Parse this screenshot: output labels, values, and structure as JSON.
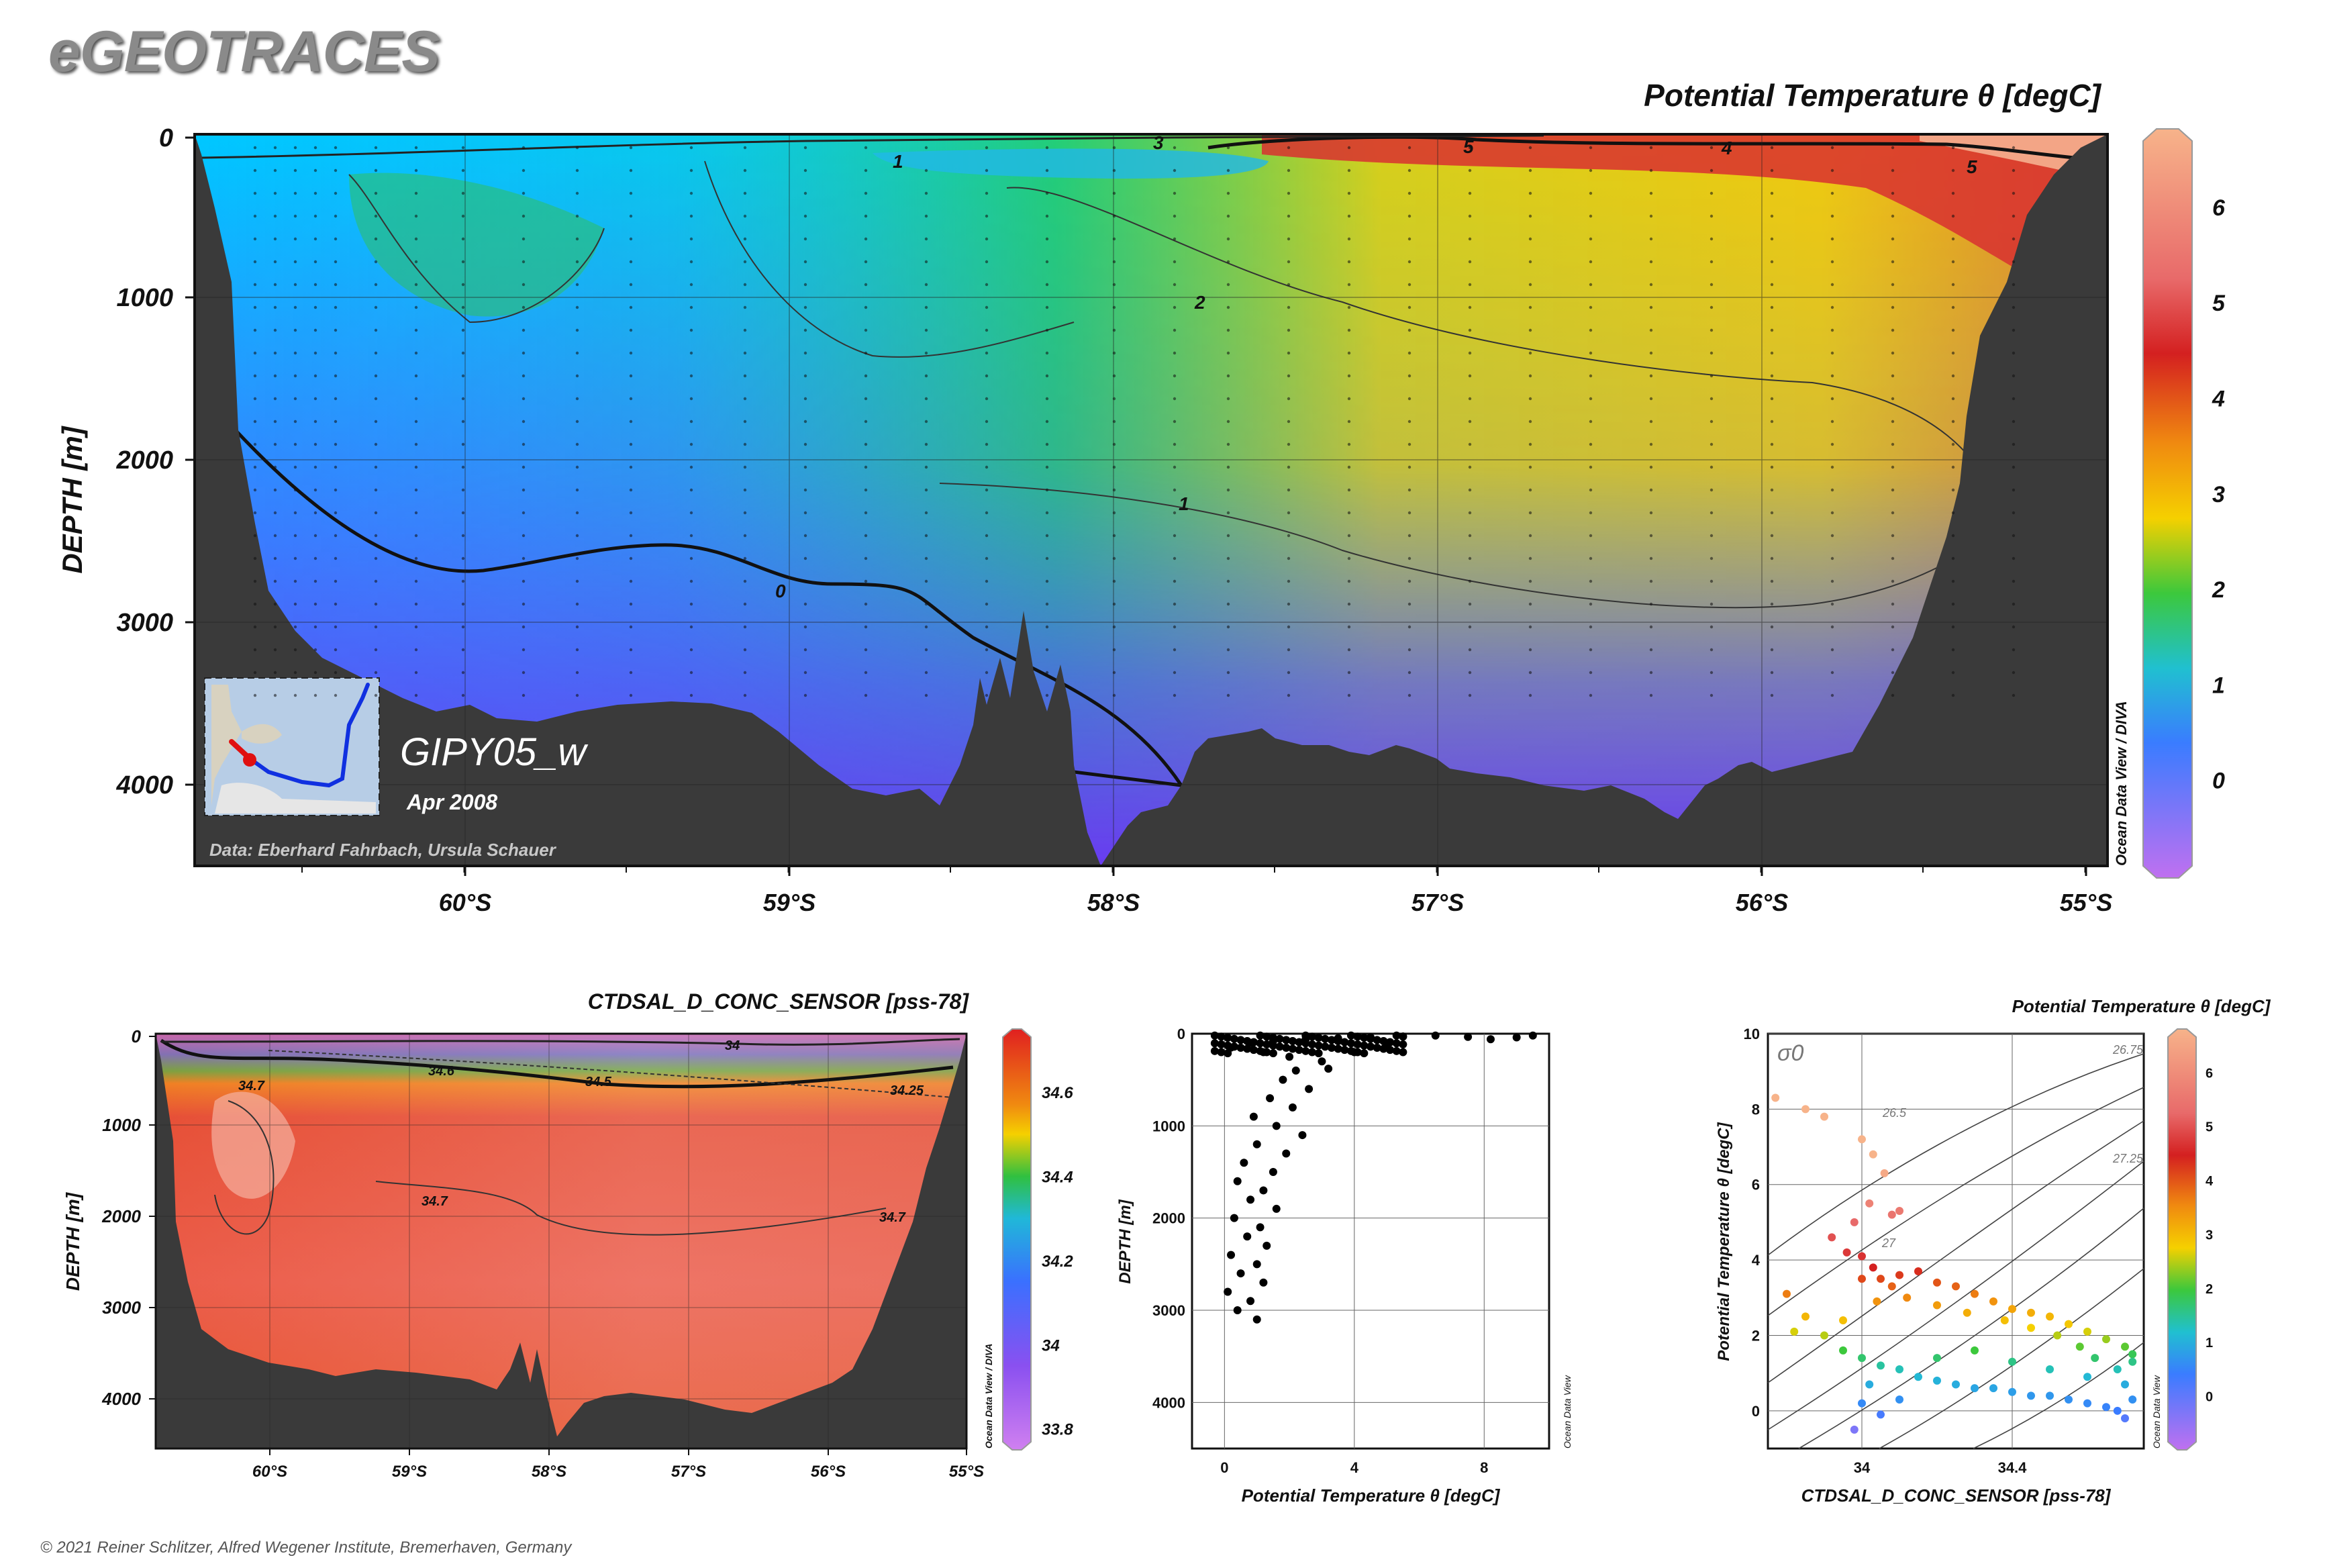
{
  "brand": "eGEOTRACES",
  "footer": "© 2021 Reiner Schlitzer, Alfred Wegener Institute, Bremerhaven, Germany",
  "chart_data": [
    {
      "id": "main-section",
      "type": "heatmap",
      "title": "Potential Temperature θ [degC]",
      "ylabel": "DEPTH [m]",
      "x_ticks": [
        "60°S",
        "59°S",
        "58°S",
        "57°S",
        "56°S",
        "55°S"
      ],
      "y_ticks": [
        "0",
        "1000",
        "2000",
        "3000",
        "4000"
      ],
      "ylim": [
        4500,
        0
      ],
      "colorbar_ticks": [
        "6",
        "5",
        "4",
        "3",
        "2",
        "1",
        "0"
      ],
      "contour_labels": [
        "0",
        "1",
        "1",
        "2",
        "3",
        "4",
        "5",
        "5"
      ],
      "cruise_label": "GIPY05_w",
      "date_label": "Apr 2008",
      "credit": "Data: Eberhard Fahrbach, Ursula Schauer",
      "side_label": "Ocean Data View / DIVA",
      "grid": true
    },
    {
      "id": "salinity-section",
      "type": "heatmap",
      "title": "CTDSAL_D_CONC_SENSOR [pss-78]",
      "ylabel": "DEPTH [m]",
      "x_ticks": [
        "60°S",
        "59°S",
        "58°S",
        "57°S",
        "56°S",
        "55°S"
      ],
      "y_ticks": [
        "0",
        "1000",
        "2000",
        "3000",
        "4000"
      ],
      "colorbar_ticks": [
        "34.6",
        "34.4",
        "34.2",
        "34",
        "33.8"
      ],
      "contour_labels": [
        "34",
        "34.25",
        "34.5",
        "34.6",
        "34.7",
        "34.7",
        "34.7"
      ],
      "side_label": "Ocean Data View / DIVA"
    },
    {
      "id": "profile-scatter",
      "type": "scatter",
      "xlabel": "Potential Temperature θ [degC]",
      "ylabel": "DEPTH [m]",
      "x_ticks": [
        "0",
        "4",
        "8"
      ],
      "y_ticks": [
        "0",
        "1000",
        "2000",
        "3000",
        "4000"
      ],
      "xlim": [
        -1,
        10
      ],
      "ylim": [
        4500,
        0
      ],
      "side_label": "Ocean Data View",
      "points": [
        [
          0.2,
          150
        ],
        [
          0.8,
          100
        ],
        [
          1.5,
          80
        ],
        [
          2.5,
          60
        ],
        [
          3.5,
          50
        ],
        [
          4.5,
          40
        ],
        [
          5.5,
          30
        ],
        [
          6.5,
          20
        ],
        [
          7.5,
          35
        ],
        [
          8.2,
          60
        ],
        [
          9,
          40
        ],
        [
          9.5,
          20
        ],
        [
          1.2,
          200
        ],
        [
          2,
          250
        ],
        [
          3,
          300
        ],
        [
          4,
          200
        ],
        [
          5,
          150
        ],
        [
          2.2,
          400
        ],
        [
          3.2,
          380
        ],
        [
          1.8,
          500
        ],
        [
          2.6,
          600
        ],
        [
          1.4,
          700
        ],
        [
          2.1,
          800
        ],
        [
          0.9,
          900
        ],
        [
          1.6,
          1000
        ],
        [
          2.4,
          1100
        ],
        [
          1,
          1200
        ],
        [
          1.9,
          1300
        ],
        [
          0.6,
          1400
        ],
        [
          1.5,
          1500
        ],
        [
          0.4,
          1600
        ],
        [
          1.2,
          1700
        ],
        [
          0.8,
          1800
        ],
        [
          1.6,
          1900
        ],
        [
          0.3,
          2000
        ],
        [
          1.1,
          2100
        ],
        [
          0.7,
          2200
        ],
        [
          1.3,
          2300
        ],
        [
          0.2,
          2400
        ],
        [
          1,
          2500
        ],
        [
          0.5,
          2600
        ],
        [
          1.2,
          2700
        ],
        [
          0.1,
          2800
        ],
        [
          0.8,
          2900
        ],
        [
          0.4,
          3000
        ],
        [
          1,
          3100
        ],
        0,
        0
      ]
    },
    {
      "id": "ts-diagram",
      "type": "scatter",
      "title": "Potential Temperature θ [degC]",
      "xlabel": "CTDSAL_D_CONC_SENSOR [pss-78]",
      "ylabel": "Potential Temperature θ [degC]",
      "x_ticks": [
        "34",
        "34.4"
      ],
      "y_ticks": [
        "10",
        "8",
        "6",
        "4",
        "2",
        "0"
      ],
      "xlim": [
        33.75,
        34.75
      ],
      "ylim": [
        -1,
        10
      ],
      "density_label": "σ0",
      "isopycnal_labels": [
        "26.75",
        "26.5",
        "27.25",
        "27"
      ],
      "colorbar_ticks": [
        "6",
        "5",
        "4",
        "3",
        "2",
        "1",
        "0"
      ],
      "side_label": "Ocean Data View",
      "points": [
        [
          33.77,
          8.3
        ],
        [
          33.85,
          8
        ],
        [
          33.9,
          7.8
        ],
        [
          34,
          7.2
        ],
        [
          34.03,
          6.8
        ],
        [
          34.06,
          6.3
        ],
        [
          34.02,
          5.5
        ],
        [
          34.08,
          5.2
        ],
        [
          33.98,
          5
        ],
        [
          34.1,
          5.3
        ],
        [
          33.92,
          4.6
        ],
        [
          33.96,
          4.2
        ],
        [
          34,
          4.1
        ],
        [
          34.03,
          3.8
        ],
        [
          34.05,
          3.5
        ],
        [
          34.1,
          3.6
        ],
        [
          34.15,
          3.7
        ],
        [
          34.2,
          3.4
        ],
        [
          34.25,
          3.3
        ],
        [
          34.3,
          3.1
        ],
        [
          34.35,
          2.9
        ],
        [
          34.4,
          2.7
        ],
        [
          34.45,
          2.6
        ],
        [
          34.5,
          2.5
        ],
        [
          34.55,
          2.3
        ],
        [
          34.6,
          2.1
        ],
        [
          34.65,
          1.9
        ],
        [
          34.7,
          1.7
        ],
        [
          34.72,
          1.5
        ],
        [
          33.8,
          3.1
        ],
        [
          33.85,
          2.5
        ],
        [
          33.82,
          2.1
        ],
        [
          33.9,
          2
        ],
        [
          33.95,
          1.6
        ],
        [
          34,
          1.4
        ],
        [
          34.05,
          1.2
        ],
        [
          34.1,
          1.1
        ],
        [
          34.15,
          0.9
        ],
        [
          34.2,
          0.8
        ],
        [
          34.25,
          0.7
        ],
        [
          34.3,
          0.6
        ],
        [
          34.35,
          0.6
        ],
        [
          34.4,
          0.5
        ],
        [
          34.45,
          0.4
        ],
        [
          34.5,
          0.4
        ],
        [
          34.55,
          0.3
        ],
        [
          34.6,
          0.2
        ],
        [
          34.65,
          0.1
        ],
        [
          34.68,
          0
        ],
        [
          34.7,
          -0.2
        ],
        [
          34.72,
          0.3
        ],
        [
          34.7,
          0.7
        ],
        [
          34.68,
          1.1
        ],
        [
          34.72,
          1.3
        ],
        [
          34,
          0.2
        ],
        [
          33.98,
          -0.5
        ],
        [
          34.05,
          -0.1
        ],
        [
          34.1,
          0.3
        ],
        [
          34.02,
          0.7
        ],
        [
          34.2,
          1.4
        ],
        [
          34.3,
          1.6
        ],
        [
          34.4,
          1.3
        ],
        [
          34.5,
          1.1
        ],
        [
          34.6,
          0.9
        ],
        [
          34.62,
          1.4
        ],
        [
          34.58,
          1.7
        ],
        [
          34.52,
          2
        ],
        [
          34.45,
          2.2
        ],
        [
          34.38,
          2.4
        ],
        [
          34.28,
          2.6
        ],
        [
          34.2,
          2.8
        ],
        [
          34.12,
          3
        ],
        [
          34.08,
          3.3
        ],
        [
          34.0,
          3.5
        ],
        [
          34.04,
          2.9
        ],
        [
          33.95,
          2.4
        ]
      ]
    }
  ]
}
